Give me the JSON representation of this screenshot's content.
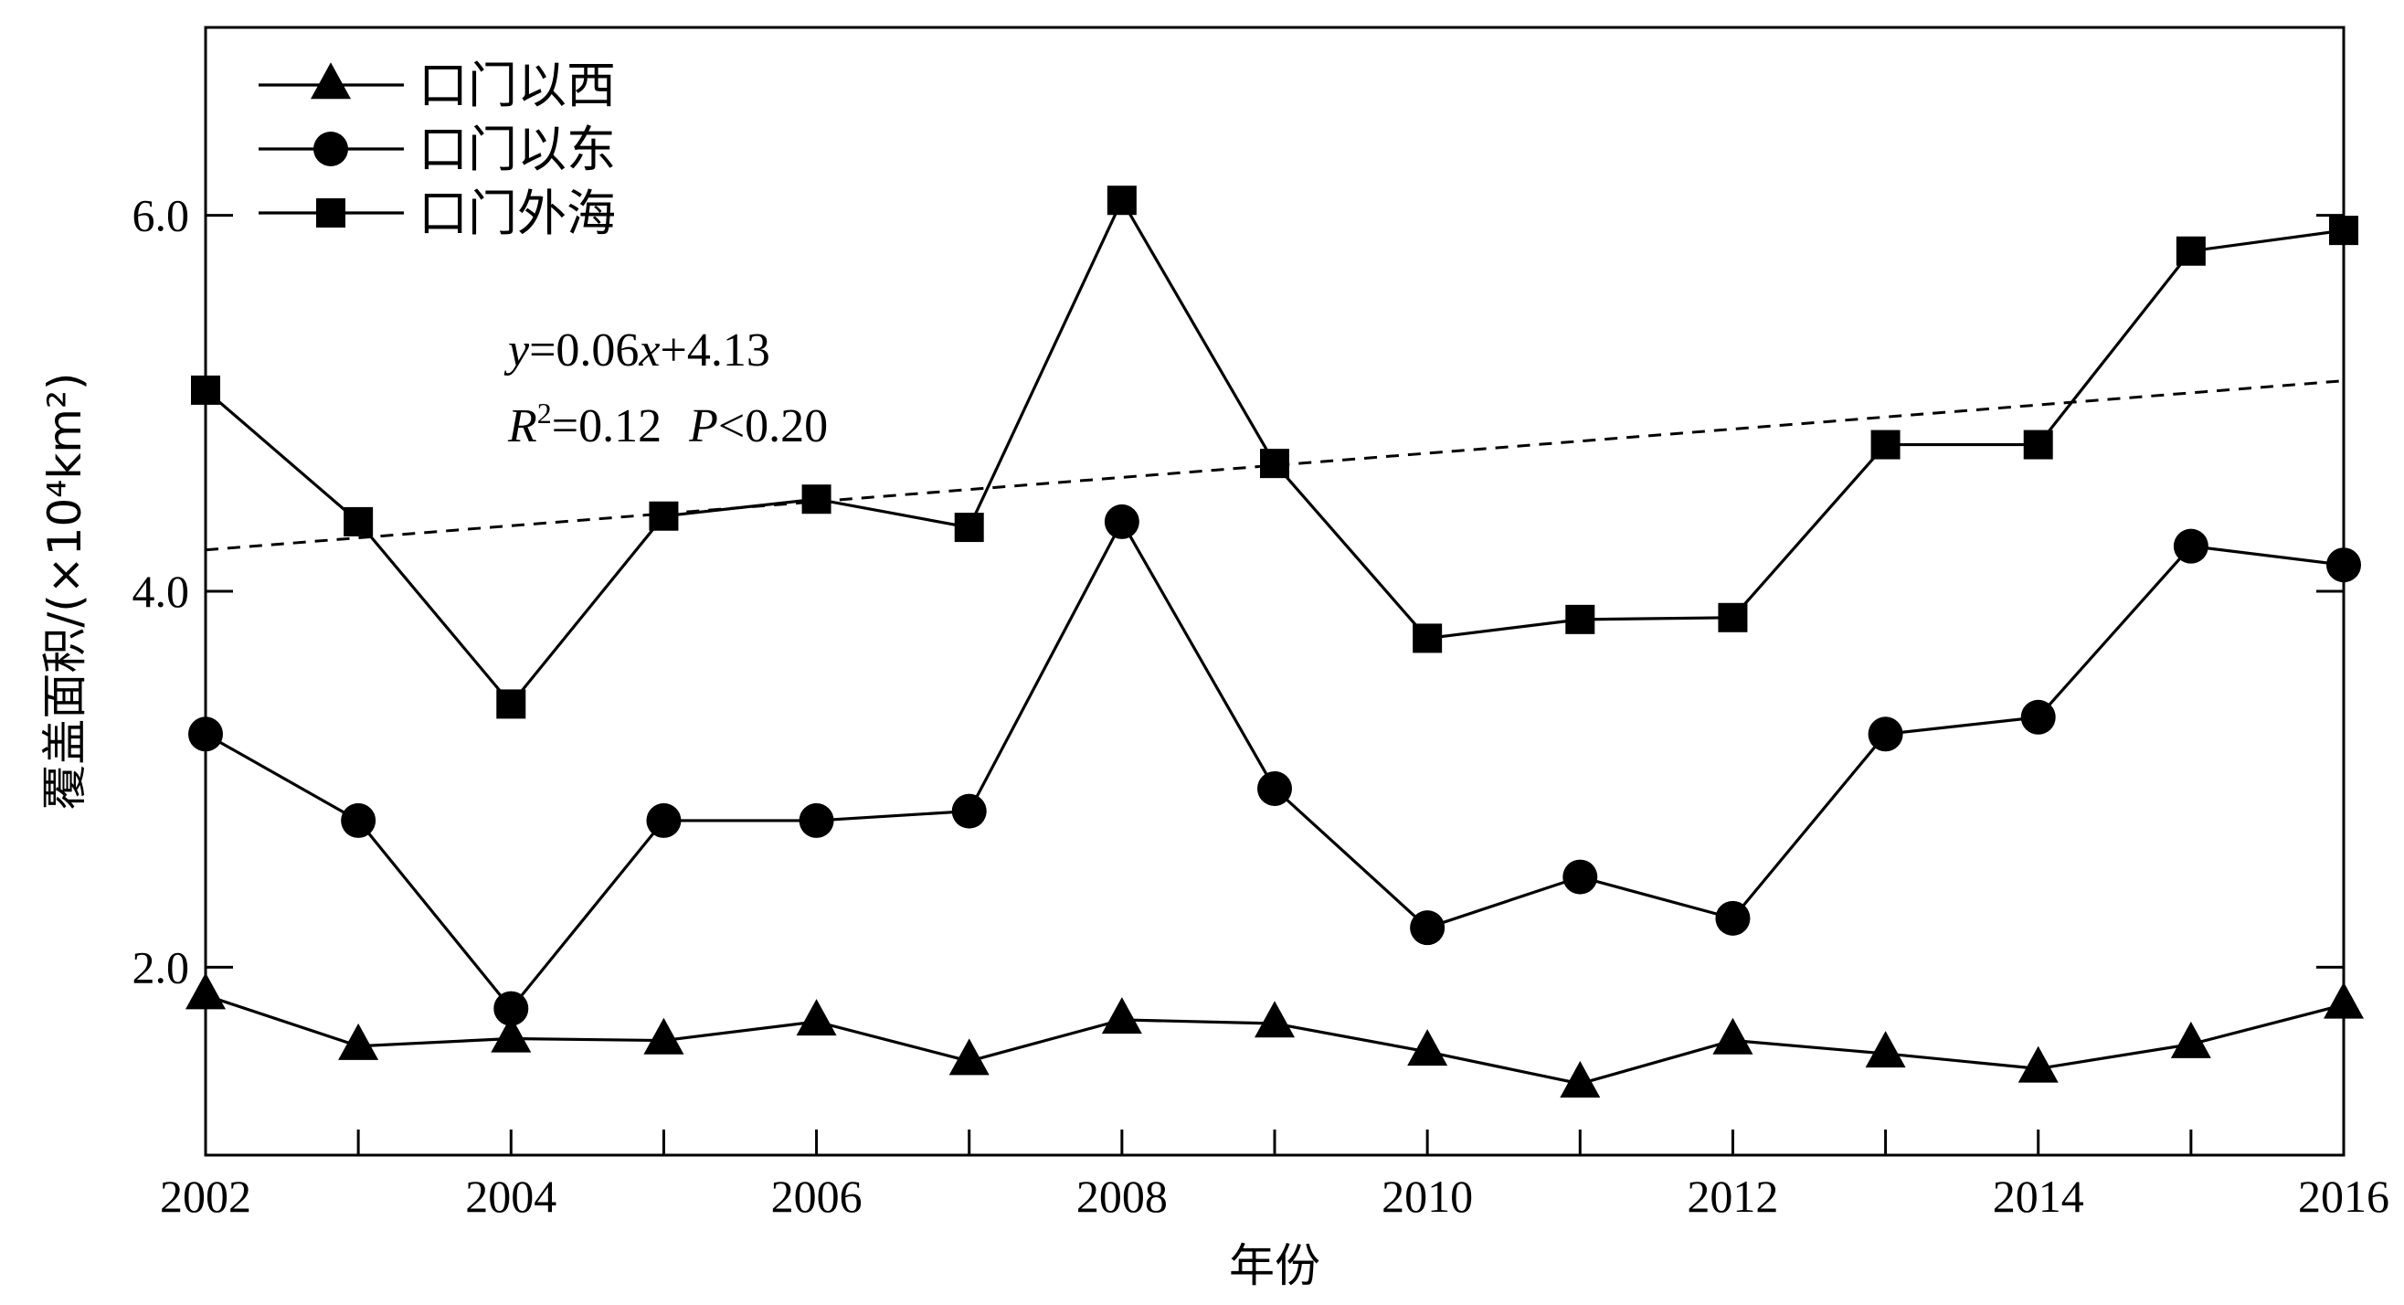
{
  "chart_data": {
    "type": "line",
    "xlabel": "年份",
    "ylabel": "覆盖面积/(×10⁴km²)",
    "xlim": [
      2002,
      2016
    ],
    "ylim": [
      1.0,
      7.0
    ],
    "x_ticks": [
      2002,
      2004,
      2006,
      2008,
      2010,
      2012,
      2014,
      2016
    ],
    "x_tick_labels": [
      "2002",
      "2004",
      "2006",
      "2008",
      "2010",
      "2012",
      "2014",
      "2016"
    ],
    "y_ticks": [
      2.0,
      4.0,
      6.0
    ],
    "y_tick_labels": [
      "2.0",
      "4.0",
      "6.0"
    ],
    "legend_position": "top-left",
    "grid": false,
    "x": [
      2002,
      2003,
      2004,
      2005,
      2006,
      2007,
      2008,
      2009,
      2010,
      2011,
      2012,
      2013,
      2014,
      2015,
      2016
    ],
    "series": [
      {
        "name": "口门以西",
        "marker": "triangle",
        "values": [
          1.85,
          1.58,
          1.62,
          1.61,
          1.71,
          1.5,
          1.72,
          1.7,
          1.55,
          1.38,
          1.61,
          1.54,
          1.46,
          1.59,
          1.8
        ]
      },
      {
        "name": "口门以东",
        "marker": "circle",
        "values": [
          3.24,
          2.78,
          1.78,
          2.78,
          2.78,
          2.83,
          4.37,
          2.95,
          2.21,
          2.48,
          2.26,
          3.24,
          3.33,
          4.24,
          4.14
        ]
      },
      {
        "name": "口门外海",
        "marker": "square",
        "values": [
          5.07,
          4.37,
          3.4,
          4.4,
          4.49,
          4.34,
          6.08,
          4.68,
          3.75,
          3.85,
          3.86,
          4.78,
          4.78,
          5.81,
          5.92
        ]
      }
    ],
    "trendline": {
      "series": "口门外海",
      "style": "dashed",
      "y_start": 4.22,
      "y_end": 5.12
    },
    "annotations": {
      "equation": {
        "y": "y",
        "eq": "=0.06",
        "x": "x",
        "rest": "+4.13"
      },
      "stats": {
        "r": "R",
        "r_exp": "2",
        "r_rest": "=0.12",
        "p": "P",
        "p_rest": "<0.20"
      }
    }
  }
}
